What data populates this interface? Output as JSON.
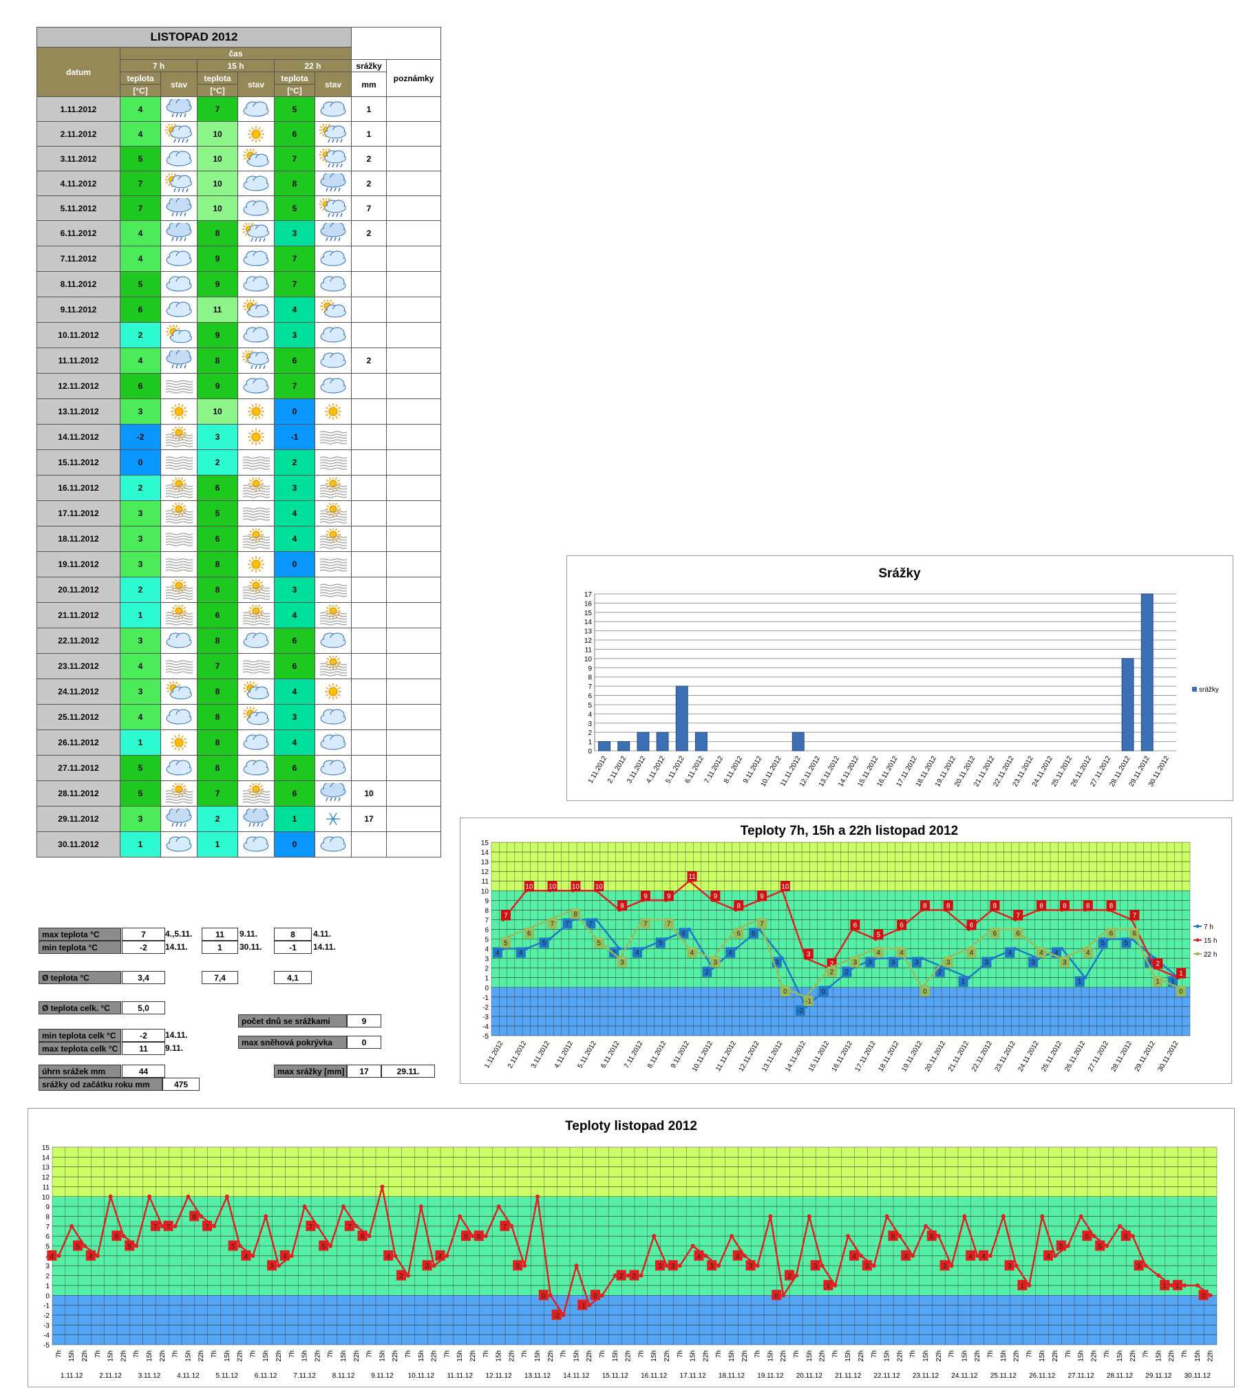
{
  "table": {
    "title": "LISTOPAD 2012",
    "h_cas": "čas",
    "h_datum": "datum",
    "h_7": "7 h",
    "h_15": "15 h",
    "h_22": "22 h",
    "h_teplota": "teplota",
    "h_unit": "[°C]",
    "h_stav": "stav",
    "h_srazky": "srážky",
    "h_mm": "mm",
    "h_pozn": "poznámky",
    "rows": [
      {
        "d": "1.11.2012",
        "t7": "4",
        "s7": "rain",
        "t15": "7",
        "s15": "cloud",
        "t22": "5",
        "s22": "cloud",
        "p": "1"
      },
      {
        "d": "2.11.2012",
        "t7": "4",
        "s7": "sunrain",
        "t15": "10",
        "s15": "sun",
        "t22": "6",
        "s22": "sunrain",
        "p": "1"
      },
      {
        "d": "3.11.2012",
        "t7": "5",
        "s7": "cloud",
        "t15": "10",
        "s15": "suncloud",
        "t22": "7",
        "s22": "sunrain",
        "p": "2"
      },
      {
        "d": "4.11.2012",
        "t7": "7",
        "s7": "sunrain",
        "t15": "10",
        "s15": "cloud",
        "t22": "8",
        "s22": "rain",
        "p": "2"
      },
      {
        "d": "5.11.2012",
        "t7": "7",
        "s7": "rain",
        "t15": "10",
        "s15": "cloud",
        "t22": "5",
        "s22": "sunrain",
        "p": "7"
      },
      {
        "d": "6.11.2012",
        "t7": "4",
        "s7": "rain",
        "t15": "8",
        "s15": "sunrain",
        "t22": "3",
        "s22": "rain",
        "p": "2"
      },
      {
        "d": "7.11.2012",
        "t7": "4",
        "s7": "cloud",
        "t15": "9",
        "s15": "cloud",
        "t22": "7",
        "s22": "cloud",
        "p": ""
      },
      {
        "d": "8.11.2012",
        "t7": "5",
        "s7": "cloud",
        "t15": "9",
        "s15": "cloud",
        "t22": "7",
        "s22": "cloud",
        "p": ""
      },
      {
        "d": "9.11.2012",
        "t7": "6",
        "s7": "cloud",
        "t15": "11",
        "s15": "suncloud",
        "t22": "4",
        "s22": "suncloud",
        "p": ""
      },
      {
        "d": "10.11.2012",
        "t7": "2",
        "s7": "suncloud",
        "t15": "9",
        "s15": "cloud",
        "t22": "3",
        "s22": "cloud",
        "p": ""
      },
      {
        "d": "11.11.2012",
        "t7": "4",
        "s7": "rain",
        "t15": "8",
        "s15": "sunrain",
        "t22": "6",
        "s22": "cloud",
        "p": "2"
      },
      {
        "d": "12.11.2012",
        "t7": "6",
        "s7": "fog",
        "t15": "9",
        "s15": "cloud",
        "t22": "7",
        "s22": "cloud",
        "p": ""
      },
      {
        "d": "13.11.2012",
        "t7": "3",
        "s7": "sun",
        "t15": "10",
        "s15": "sun",
        "t22": "0",
        "s22": "sun",
        "p": ""
      },
      {
        "d": "14.11.2012",
        "t7": "-2",
        "s7": "sunfog",
        "t15": "3",
        "s15": "sun",
        "t22": "-1",
        "s22": "fog",
        "p": ""
      },
      {
        "d": "15.11.2012",
        "t7": "0",
        "s7": "fog",
        "t15": "2",
        "s15": "fog",
        "t22": "2",
        "s22": "fog",
        "p": ""
      },
      {
        "d": "16.11.2012",
        "t7": "2",
        "s7": "sunfog",
        "t15": "6",
        "s15": "sunfog",
        "t22": "3",
        "s22": "sunfog",
        "p": ""
      },
      {
        "d": "17.11.2012",
        "t7": "3",
        "s7": "sunfog",
        "t15": "5",
        "s15": "fog",
        "t22": "4",
        "s22": "sunfog",
        "p": ""
      },
      {
        "d": "18.11.2012",
        "t7": "3",
        "s7": "fog",
        "t15": "6",
        "s15": "sunfog",
        "t22": "4",
        "s22": "sunfog",
        "p": ""
      },
      {
        "d": "19.11.2012",
        "t7": "3",
        "s7": "fog",
        "t15": "8",
        "s15": "sun",
        "t22": "0",
        "s22": "fog",
        "p": ""
      },
      {
        "d": "20.11.2012",
        "t7": "2",
        "s7": "sunfog",
        "t15": "8",
        "s15": "sunfog",
        "t22": "3",
        "s22": "fog",
        "p": ""
      },
      {
        "d": "21.11.2012",
        "t7": "1",
        "s7": "sunfog",
        "t15": "6",
        "s15": "sunfog",
        "t22": "4",
        "s22": "sunfog",
        "p": ""
      },
      {
        "d": "22.11.2012",
        "t7": "3",
        "s7": "cloud",
        "t15": "8",
        "s15": "cloud",
        "t22": "6",
        "s22": "cloud",
        "p": ""
      },
      {
        "d": "23.11.2012",
        "t7": "4",
        "s7": "fog",
        "t15": "7",
        "s15": "fog",
        "t22": "6",
        "s22": "sunfog",
        "p": ""
      },
      {
        "d": "24.11.2012",
        "t7": "3",
        "s7": "suncloud",
        "t15": "8",
        "s15": "suncloud",
        "t22": "4",
        "s22": "sun",
        "p": ""
      },
      {
        "d": "25.11.2012",
        "t7": "4",
        "s7": "cloud",
        "t15": "8",
        "s15": "suncloud",
        "t22": "3",
        "s22": "cloud",
        "p": ""
      },
      {
        "d": "26.11.2012",
        "t7": "1",
        "s7": "sun",
        "t15": "8",
        "s15": "cloud",
        "t22": "4",
        "s22": "cloud",
        "p": ""
      },
      {
        "d": "27.11.2012",
        "t7": "5",
        "s7": "cloud",
        "t15": "8",
        "s15": "cloud",
        "t22": "6",
        "s22": "cloud",
        "p": ""
      },
      {
        "d": "28.11.2012",
        "t7": "5",
        "s7": "sunfog",
        "t15": "7",
        "s15": "sunfog",
        "t22": "6",
        "s22": "rain",
        "p": "10"
      },
      {
        "d": "29.11.2012",
        "t7": "3",
        "s7": "rain",
        "t15": "2",
        "s15": "rain",
        "t22": "1",
        "s22": "snow",
        "p": "17"
      },
      {
        "d": "30.11.2012",
        "t7": "1",
        "s7": "cloud",
        "t15": "1",
        "s15": "cloud",
        "t22": "0",
        "s22": "cloud",
        "p": ""
      }
    ]
  },
  "summary": {
    "max_label": "max teplota °C",
    "max7": "7",
    "max7d": "4.,5.11.",
    "max15": "11",
    "max15d": "9.11.",
    "max22": "8",
    "max22d": "4.11.",
    "min_label": "min teplota °C",
    "min7": "-2",
    "min7d": "14.11.",
    "min15": "1",
    "min15d": "30.11.",
    "min22": "-1",
    "min22d": "14.11.",
    "avg_label": "Ø teplota °C",
    "avg7": "3,4",
    "avg15": "7,4",
    "avg22": "4,1",
    "avgall_label": "Ø teplota celk. °C",
    "avgall": "5,0",
    "raindays_label": "počet dnů se srážkami",
    "raindays": "9",
    "mincelk_label": "min teplota celk °C",
    "mincelk": "-2",
    "mincelkd": "14.11.",
    "maxcelk_label": "max teplota celk °C",
    "maxcelk": "11",
    "maxcelkd": "9.11.",
    "snow_label": "max sněhová pokrývka",
    "snow": "0",
    "uhrn_label": "úhrn srážek  mm",
    "uhrn": "44",
    "maxsr_label": "max srážky [mm]",
    "maxsr": "17",
    "maxsrd": "29.11.",
    "year_label": "srážky od začátku roku mm",
    "year": "475"
  },
  "chart_data": [
    {
      "type": "bar",
      "title": "Srážky",
      "legend": "right",
      "categories": [
        "1.11.2012",
        "2.11.2012",
        "3.11.2012",
        "4.11.2012",
        "5.11.2012",
        "6.11.2012",
        "7.11.2012",
        "8.11.2012",
        "9.11.2012",
        "10.11.2012",
        "11.11.2012",
        "12.11.2012",
        "13.11.2012",
        "14.11.2012",
        "15.11.2012",
        "16.11.2012",
        "17.11.2012",
        "18.11.2012",
        "19.11.2012",
        "20.11.2012",
        "21.11.2012",
        "22.11.2012",
        "23.11.2012",
        "24.11.2012",
        "25.11.2012",
        "26.11.2012",
        "27.11.2012",
        "28.11.2012",
        "29.11.2012",
        "30.11.2012"
      ],
      "series": [
        {
          "name": "srážky",
          "values": [
            1,
            1,
            2,
            2,
            7,
            2,
            0,
            0,
            0,
            0,
            2,
            0,
            0,
            0,
            0,
            0,
            0,
            0,
            0,
            0,
            0,
            0,
            0,
            0,
            0,
            0,
            0,
            10,
            17,
            0
          ],
          "color": "#3d6fb5"
        }
      ],
      "ylim": [
        0,
        17
      ]
    },
    {
      "type": "line",
      "title": "Teploty 7h, 15h a 22h listopad 2012",
      "legend": "right",
      "categories": [
        "1.11.2012",
        "2.11.2012",
        "3.11.2012",
        "4.11.2012",
        "5.11.2012",
        "6.11.2012",
        "7.11.2012",
        "8.11.2012",
        "9.11.2012",
        "10.11.2012",
        "11.11.2012",
        "12.11.2012",
        "13.11.2012",
        "14.11.2012",
        "15.11.2012",
        "16.11.2012",
        "17.11.2012",
        "18.11.2012",
        "19.11.2012",
        "20.11.2012",
        "21.11.2012",
        "22.11.2012",
        "23.11.2012",
        "24.11.2012",
        "25.11.2012",
        "26.11.2012",
        "27.11.2012",
        "28.11.2012",
        "29.11.2012",
        "30.11.2012"
      ],
      "series": [
        {
          "name": "7 h",
          "color": "#1f77c8",
          "values": [
            4,
            4,
            5,
            7,
            7,
            4,
            4,
            5,
            6,
            2,
            4,
            6,
            3,
            -2,
            0,
            2,
            3,
            3,
            3,
            2,
            1,
            3,
            4,
            3,
            4,
            1,
            5,
            5,
            3,
            1
          ]
        },
        {
          "name": "15 h",
          "color": "#e02020",
          "values": [
            7,
            10,
            10,
            10,
            10,
            8,
            9,
            9,
            11,
            9,
            8,
            9,
            10,
            3,
            2,
            6,
            5,
            6,
            8,
            8,
            6,
            8,
            7,
            8,
            8,
            8,
            8,
            7,
            2,
            1
          ]
        },
        {
          "name": "22 h",
          "color": "#9bbb59",
          "values": [
            5,
            6,
            7,
            8,
            5,
            3,
            7,
            7,
            4,
            3,
            6,
            7,
            0,
            -1,
            2,
            3,
            4,
            4,
            0,
            3,
            4,
            6,
            6,
            4,
            3,
            4,
            6,
            6,
            1,
            0
          ]
        }
      ],
      "ylim": [
        -5,
        15
      ]
    },
    {
      "type": "line",
      "title": "Teploty listopad 2012",
      "sub_labels": [
        "7h",
        "15h",
        "22h"
      ],
      "day_labels": [
        "1.11.12",
        "2.11.12",
        "3.11.12",
        "4.11.12",
        "5.11.12",
        "6.11.12",
        "7.11.12",
        "8.11.12",
        "9.11.12",
        "10.11.12",
        "11.11.12",
        "12.11.12",
        "13.11.12",
        "14.11.12",
        "15.11.12",
        "16.11.12",
        "17.11.12",
        "18.11.12",
        "19.11.12",
        "20.11.12",
        "21.11.12",
        "22.11.12",
        "23.11.12",
        "24.11.12",
        "25.11.12",
        "26.11.12",
        "27.11.12",
        "28.11.12",
        "29.11.12",
        "30.11.12"
      ],
      "series": [
        {
          "name": "",
          "color": "#e02020",
          "values": [
            4,
            7,
            5,
            4,
            10,
            6,
            5,
            10,
            7,
            7,
            10,
            8,
            7,
            10,
            5,
            4,
            8,
            3,
            4,
            9,
            7,
            5,
            9,
            7,
            6,
            11,
            4,
            2,
            9,
            3,
            4,
            8,
            6,
            6,
            9,
            7,
            3,
            10,
            0,
            -2,
            3,
            -1,
            0,
            2,
            2,
            2,
            6,
            3,
            3,
            5,
            4,
            3,
            6,
            4,
            3,
            8,
            0,
            2,
            8,
            3,
            1,
            6,
            4,
            3,
            8,
            6,
            4,
            7,
            6,
            3,
            8,
            4,
            4,
            8,
            3,
            1,
            8,
            4,
            5,
            8,
            6,
            5,
            7,
            6,
            3,
            2,
            1,
            1,
            1,
            0
          ]
        }
      ],
      "ylim": [
        -5,
        15
      ]
    }
  ]
}
